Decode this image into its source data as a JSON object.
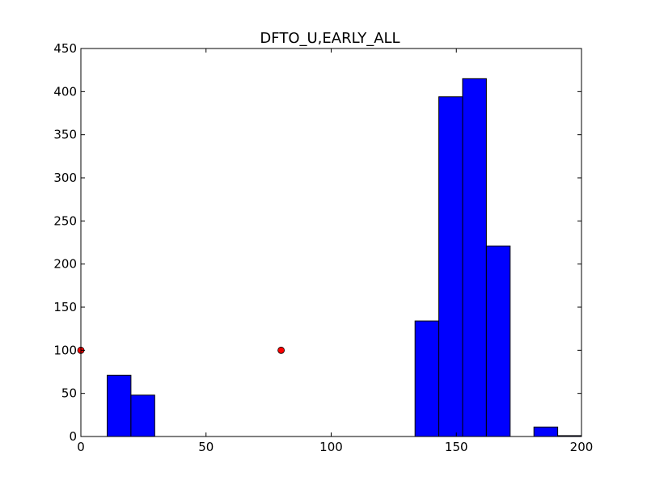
{
  "chart_data": {
    "type": "bar",
    "title": "DFTO_U,EARLY_ALL",
    "xlabel": "",
    "ylabel": "",
    "xlim": [
      0,
      200
    ],
    "ylim": [
      0,
      450
    ],
    "xticks": [
      0,
      50,
      100,
      150,
      200
    ],
    "yticks": [
      0,
      50,
      100,
      150,
      200,
      250,
      300,
      350,
      400,
      450
    ],
    "grid": false,
    "legend": "none",
    "bar_color": "#0000ff",
    "marker_color": "#ff0000",
    "bins": [
      {
        "x0": 10.5,
        "x1": 20.0,
        "value": 71
      },
      {
        "x0": 20.0,
        "x1": 29.5,
        "value": 48
      },
      {
        "x0": 29.5,
        "x1": 133.5,
        "value": 0
      },
      {
        "x0": 133.5,
        "x1": 143.0,
        "value": 134
      },
      {
        "x0": 143.0,
        "x1": 152.5,
        "value": 394
      },
      {
        "x0": 152.5,
        "x1": 162.0,
        "value": 415
      },
      {
        "x0": 162.0,
        "x1": 171.5,
        "value": 221
      },
      {
        "x0": 171.5,
        "x1": 181.0,
        "value": 0
      },
      {
        "x0": 181.0,
        "x1": 190.5,
        "value": 11
      },
      {
        "x0": 190.5,
        "x1": 200.0,
        "value": 1
      }
    ],
    "points": [
      {
        "x": 0,
        "y": 100
      },
      {
        "x": 80,
        "y": 100
      }
    ]
  }
}
